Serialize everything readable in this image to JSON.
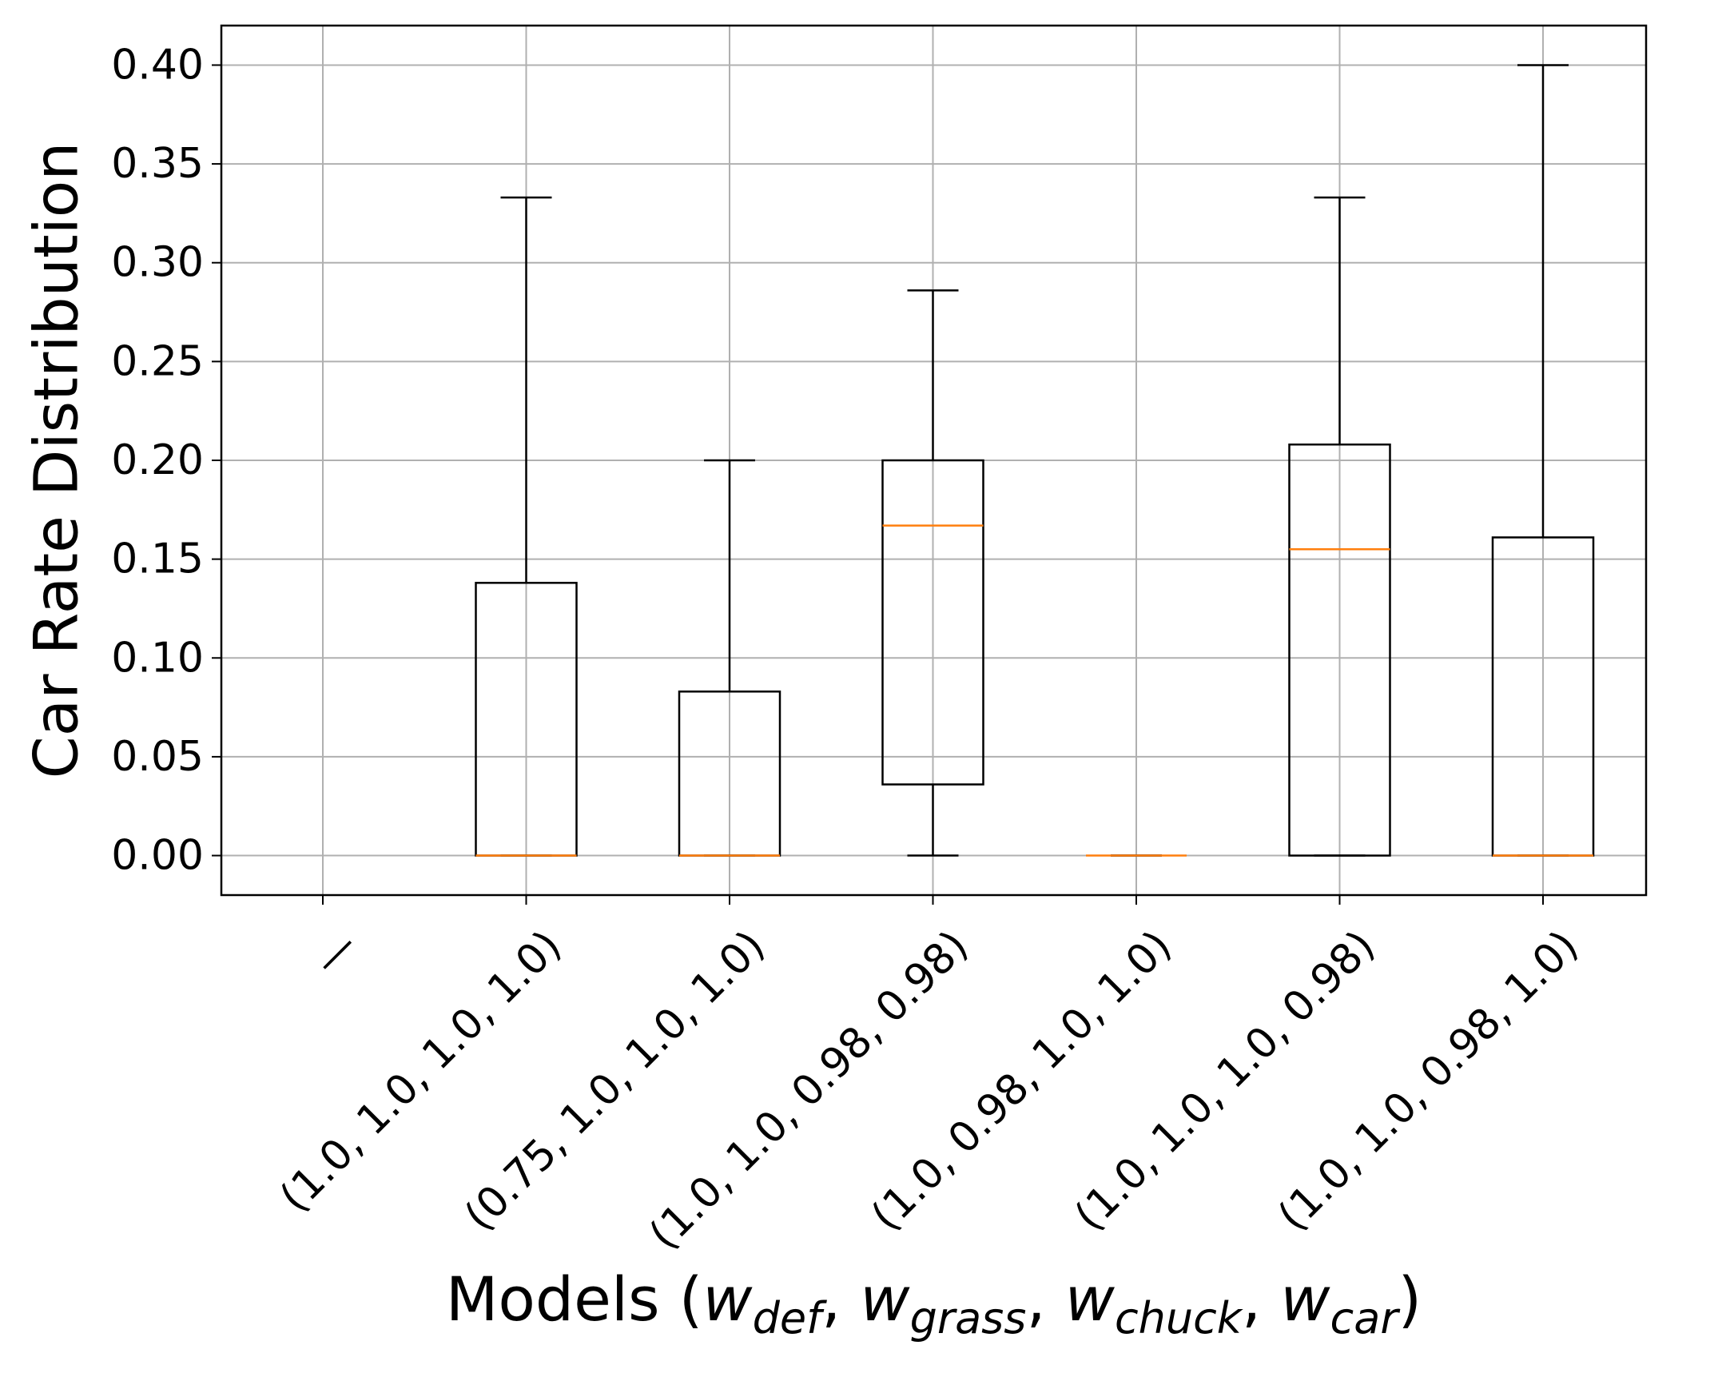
{
  "chart_data": {
    "type": "boxplot",
    "title": "",
    "xlabel": {
      "prefix": "Models (",
      "terms": [
        {
          "base": "w",
          "sub": "def"
        },
        {
          "base": "w",
          "sub": "grass"
        },
        {
          "base": "w",
          "sub": "chuck"
        },
        {
          "base": "w",
          "sub": "car"
        }
      ],
      "separator": ", ",
      "suffix": ")"
    },
    "ylabel": "Car Rate Distribution",
    "ylim": [
      -0.02,
      0.42
    ],
    "yticks": [
      0.0,
      0.05,
      0.1,
      0.15,
      0.2,
      0.25,
      0.3,
      0.35,
      0.4
    ],
    "ytick_labels": [
      "0.00",
      "0.05",
      "0.10",
      "0.15",
      "0.20",
      "0.25",
      "0.30",
      "0.35",
      "0.40"
    ],
    "grid": true,
    "categories": [
      "—",
      "(1.0, 1.0, 1.0, 1.0)",
      "(0.75, 1.0, 1.0, 1.0)",
      "(1.0, 1.0, 0.98, 0.98)",
      "(1.0, 0.98, 1.0, 1.0)",
      "(1.0, 1.0, 1.0, 0.98)",
      "(1.0, 1.0, 0.98, 1.0)"
    ],
    "boxes": [
      null,
      {
        "whisker_low": 0.0,
        "q1": 0.0,
        "median": 0.0,
        "q3": 0.138,
        "whisker_high": 0.333
      },
      {
        "whisker_low": 0.0,
        "q1": 0.0,
        "median": 0.0,
        "q3": 0.083,
        "whisker_high": 0.2
      },
      {
        "whisker_low": 0.0,
        "q1": 0.036,
        "median": 0.167,
        "q3": 0.2,
        "whisker_high": 0.286
      },
      {
        "whisker_low": 0.0,
        "q1": 0.0,
        "median": 0.0,
        "q3": 0.0,
        "whisker_high": 0.0
      },
      {
        "whisker_low": 0.0,
        "q1": 0.0,
        "median": 0.155,
        "q3": 0.208,
        "whisker_high": 0.333
      },
      {
        "whisker_low": 0.0,
        "q1": 0.0,
        "median": 0.0,
        "q3": 0.161,
        "whisker_high": 0.4
      }
    ],
    "colors": {
      "box": "#000000",
      "median": "#ff7f0e",
      "grid": "#b0b0b0"
    }
  }
}
